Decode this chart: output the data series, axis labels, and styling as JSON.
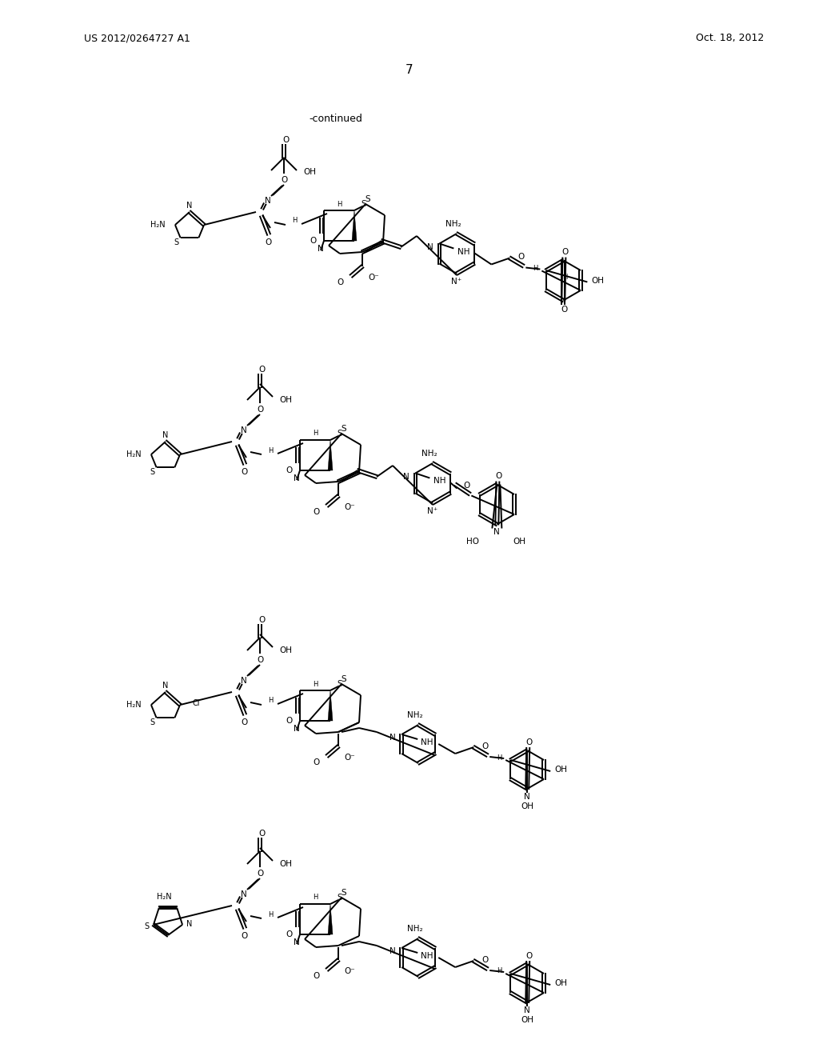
{
  "header_left": "US 2012/0264727 A1",
  "header_right": "Oct. 18, 2012",
  "page_number": "7",
  "continued": "-continued",
  "bg_color": "#ffffff",
  "text_color": "#000000"
}
